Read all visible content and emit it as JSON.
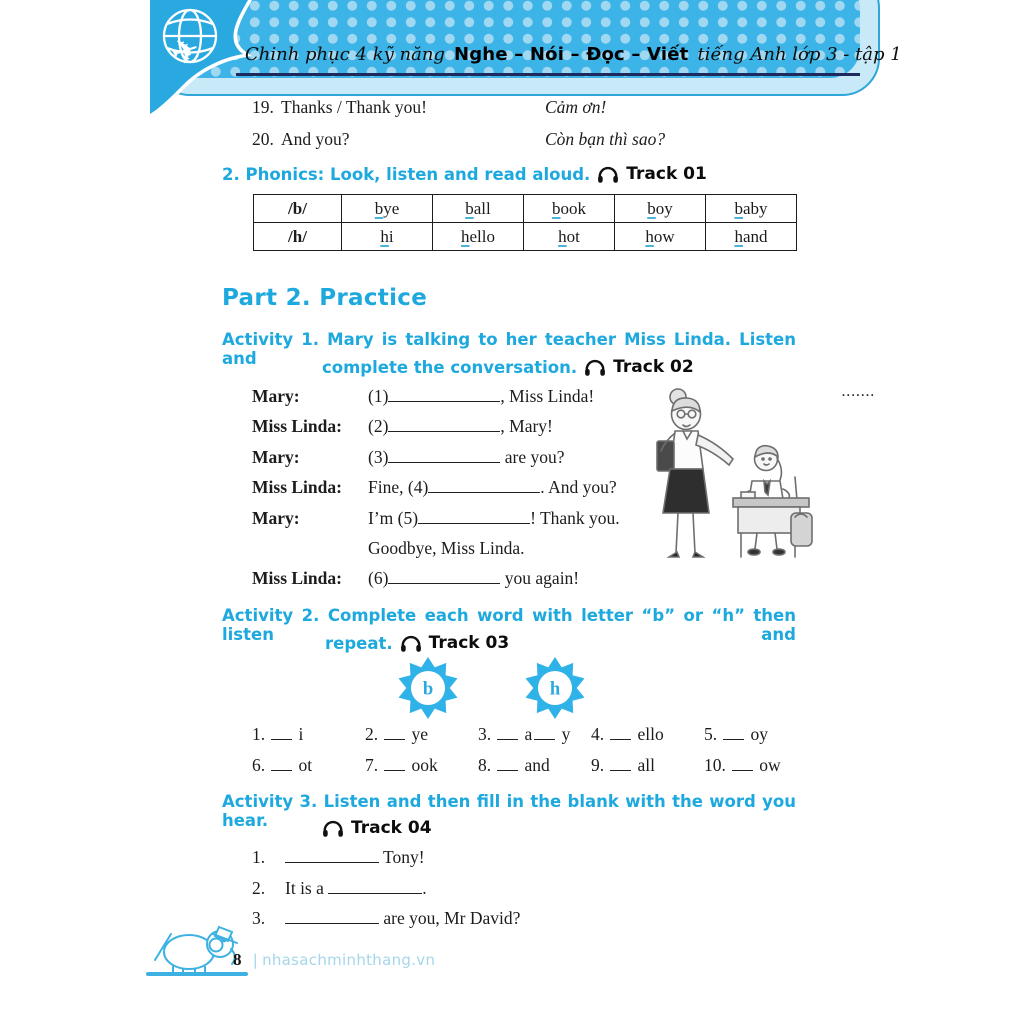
{
  "header": {
    "title_prefix": "Chinh phục 4 kỹ năng",
    "title_bold": "Nghe – Nói – Đọc – Viết",
    "title_suffix": "tiếng Anh lớp 3 - tập 1"
  },
  "vocab_items": [
    {
      "num": "19.",
      "en": "Thanks / Thank you!",
      "vi": "Cảm ơn!"
    },
    {
      "num": "20.",
      "en": "And you?",
      "vi": "Còn bạn thì sao?"
    }
  ],
  "phonics": {
    "heading": "2. Phonics: Look, listen and read aloud.",
    "track": "Track 01",
    "table_rows": [
      {
        "phoneme": "/b/",
        "words": [
          "bye",
          "ball",
          "book",
          "boy",
          "baby"
        ]
      },
      {
        "phoneme": "/h/",
        "words": [
          "hi",
          "hello",
          "hot",
          "how",
          "hand"
        ]
      }
    ]
  },
  "part2_heading": "Part 2. Practice",
  "activity1": {
    "line1": "Activity 1. Mary is talking to her teacher Miss Linda. Listen and",
    "line2": "complete the conversation.",
    "track": "Track 02",
    "corner_dots": ".......",
    "conversation": [
      {
        "speaker": "Mary:",
        "pre": "(1)",
        "blank": true,
        "post": ", Miss Linda!"
      },
      {
        "speaker": "Miss Linda:",
        "pre": "(2)",
        "blank": true,
        "post": ", Mary!"
      },
      {
        "speaker": "Mary:",
        "pre": "(3)",
        "blank": true,
        "post": " are you?"
      },
      {
        "speaker": "Miss Linda:",
        "pre": "Fine, (4)",
        "blank": true,
        "post": ". And you?"
      },
      {
        "speaker": "Mary:",
        "pre": "I’m (5)",
        "blank": true,
        "post": "! Thank you."
      },
      {
        "speaker": "",
        "pre": "Goodbye, Miss Linda.",
        "blank": false,
        "post": ""
      },
      {
        "speaker": "Miss Linda:",
        "pre": "(6)",
        "blank": true,
        "post": " you again!"
      }
    ]
  },
  "activity2": {
    "line1": "Activity 2. Complete each word with letter “b” or “h” then listen and",
    "line2": "repeat.",
    "track": "Track 03",
    "badges": [
      "b",
      "h"
    ],
    "row1": [
      {
        "num": "1.",
        "text": "__ i"
      },
      {
        "num": "2.",
        "text": "__ ye"
      },
      {
        "num": "3.",
        "text": "__ a__ y"
      },
      {
        "num": "4.",
        "text": "__ ello"
      },
      {
        "num": "5.",
        "text": "__ oy"
      }
    ],
    "row2": [
      {
        "num": "6.",
        "text": "__ ot"
      },
      {
        "num": "7.",
        "text": "__ ook"
      },
      {
        "num": "8.",
        "text": "__ and"
      },
      {
        "num": "9.",
        "text": "__ all"
      },
      {
        "num": "10.",
        "text": "__ ow"
      }
    ]
  },
  "activity3": {
    "line1": "Activity 3. Listen and then fill in the blank with the word you hear.",
    "track": "Track 04",
    "items": [
      {
        "num": "1.",
        "pre": "",
        "post": " Tony!"
      },
      {
        "num": "2.",
        "pre": "It is a ",
        "post": "."
      },
      {
        "num": "3.",
        "pre": "",
        "post": " are you, Mr David?"
      }
    ]
  },
  "footer": {
    "page_number": "8",
    "separator": "|",
    "site": "nhasachminhthang.vn"
  },
  "colors": {
    "accent_cyan": "#1ea9de",
    "banner_fill": "#3cb4e7",
    "banner_band": "#c8e9f8",
    "banner_dots": "#a0d8f2",
    "navy_line": "#1e2a5e",
    "underline_cyan": "#49b4d6",
    "footer_link": "#a5d6e9"
  }
}
